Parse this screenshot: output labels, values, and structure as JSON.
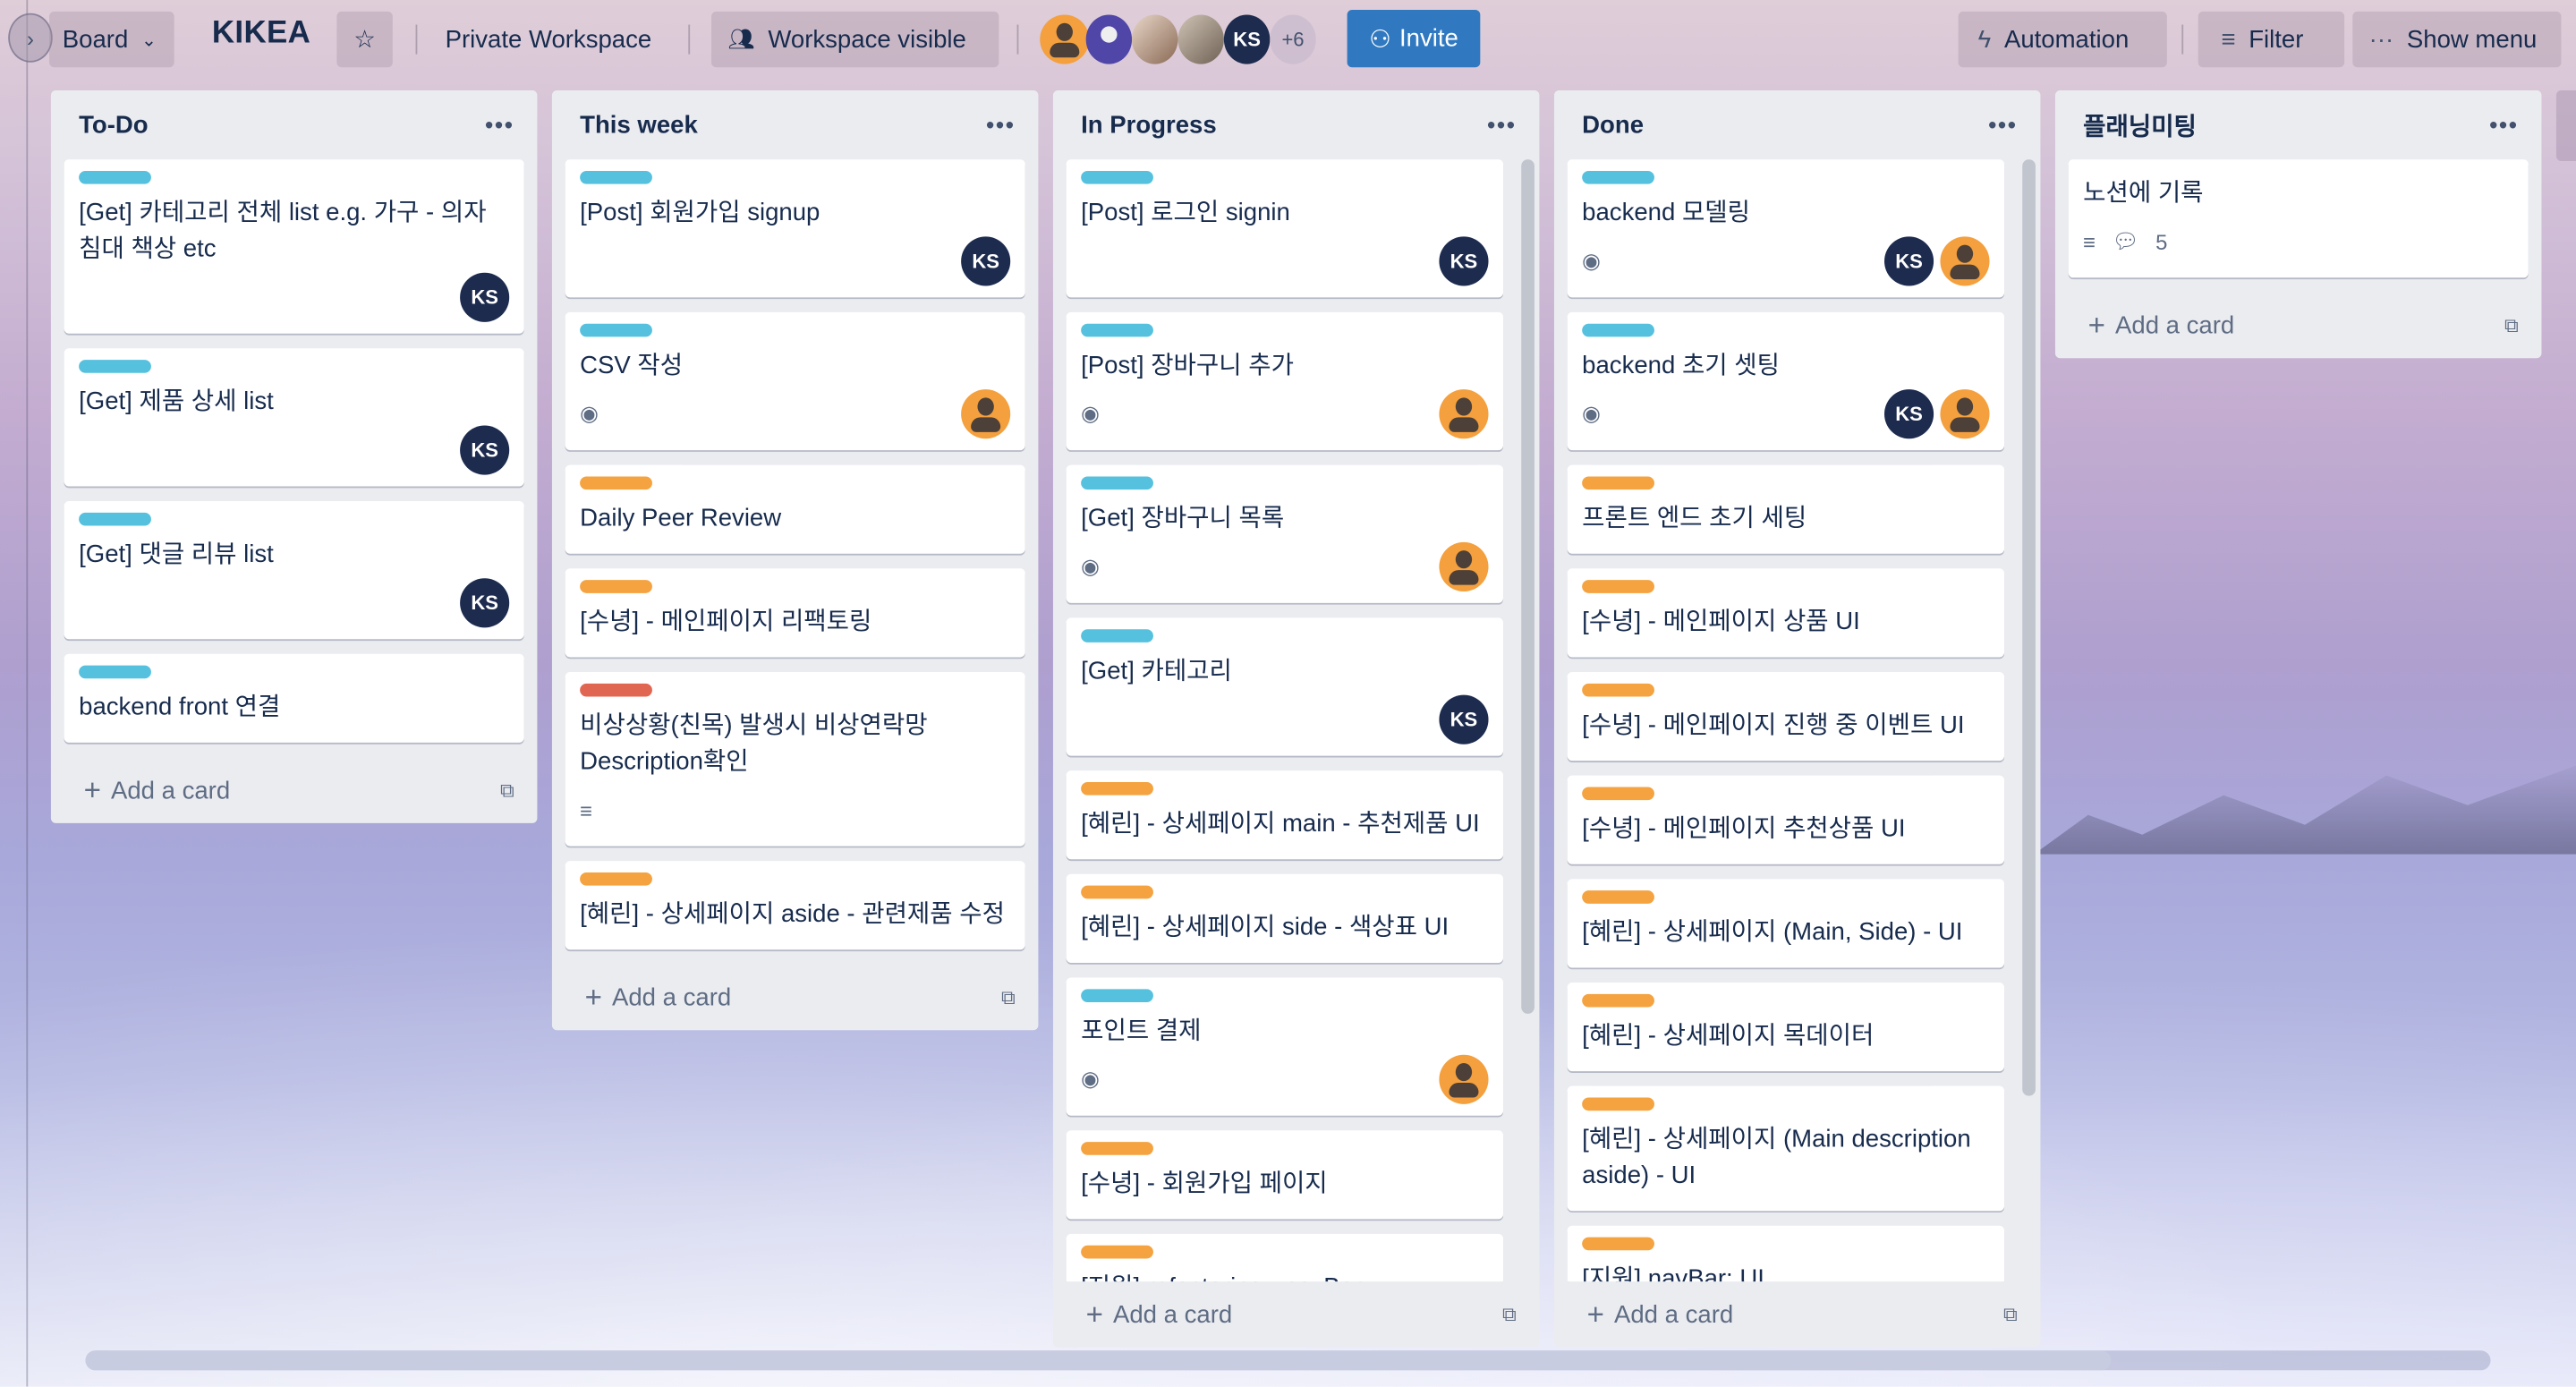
{
  "header": {
    "board_label": "Board",
    "board_title": "KIKEA",
    "workspace": "Private Workspace",
    "visibility": "Workspace visible",
    "members": [
      {
        "type": "default-orange"
      },
      {
        "type": "admin-purple"
      },
      {
        "type": "photo"
      },
      {
        "type": "photo"
      },
      {
        "initials": "KS"
      }
    ],
    "more_members": "+6",
    "invite": "Invite",
    "automation": "Automation",
    "filter": "Filter",
    "show_menu": "Show menu"
  },
  "colors": {
    "label_blue": "#56c1de",
    "label_orange": "#f4a340",
    "label_red": "#e06651",
    "avatar_ks": "#1d2b4f",
    "avatar_orange": "#f4a03e",
    "invite": "#3079c0"
  },
  "add_card": "Add a card",
  "lists": [
    {
      "title": "To-Do",
      "cards": [
        {
          "label": "blue",
          "title": "[Get] 카테고리 전체 list e.g. 가구 - 의자 침대 책상 etc",
          "members": [
            "KS"
          ]
        },
        {
          "label": "blue",
          "title": "[Get] 제품 상세 list",
          "members": [
            "KS"
          ]
        },
        {
          "label": "blue",
          "title": "[Get] 댓글 리뷰 list",
          "members": [
            "KS"
          ]
        },
        {
          "label": "blue",
          "title": "backend front 연결"
        }
      ]
    },
    {
      "title": "This week",
      "cards": [
        {
          "label": "blue",
          "title": "[Post] 회원가입 signup",
          "members": [
            "KS"
          ]
        },
        {
          "label": "blue",
          "title": "CSV 작성",
          "watch": true,
          "members": [
            "orange"
          ]
        },
        {
          "label": "orange",
          "title": "Daily Peer Review"
        },
        {
          "label": "orange",
          "title": "[수녕] - 메인페이지 리팩토링"
        },
        {
          "label": "red",
          "title": "비상상황(친목) 발생시 비상연락망 Description확인",
          "description": true
        },
        {
          "label": "orange",
          "title": "[혜린] - 상세페이지 aside - 관련제품 수정"
        }
      ]
    },
    {
      "title": "In Progress",
      "scroll": true,
      "cards": [
        {
          "label": "blue",
          "title": "[Post] 로그인 signin",
          "members": [
            "KS"
          ]
        },
        {
          "label": "blue",
          "title": "[Post] 장바구니 추가",
          "watch": true,
          "members": [
            "orange"
          ]
        },
        {
          "label": "blue",
          "title": "[Get] 장바구니 목록",
          "watch": true,
          "members": [
            "orange"
          ]
        },
        {
          "label": "blue",
          "title": "[Get] 카테고리",
          "members": [
            "KS"
          ]
        },
        {
          "label": "orange",
          "title": "[혜린] - 상세페이지 main - 추천제품 UI"
        },
        {
          "label": "orange",
          "title": "[혜린] - 상세페이지 side - 색상표 UI"
        },
        {
          "label": "blue",
          "title": "포인트 결제",
          "watch": true,
          "members": [
            "orange"
          ]
        },
        {
          "label": "orange",
          "title": "[수녕] - 회원가입 페이지"
        },
        {
          "label": "orange",
          "title": "[지원] refactoring : navBar"
        }
      ]
    },
    {
      "title": "Done",
      "scroll": true,
      "cards": [
        {
          "label": "blue",
          "title": "backend 모델링",
          "watch": true,
          "members": [
            "KS",
            "orange"
          ]
        },
        {
          "label": "blue",
          "title": "backend 초기 셋팅",
          "watch": true,
          "members": [
            "KS",
            "orange"
          ]
        },
        {
          "label": "orange",
          "title": "프론트 엔드 초기 세팅"
        },
        {
          "label": "orange",
          "title": "[수녕] - 메인페이지 상품 UI"
        },
        {
          "label": "orange",
          "title": "[수녕] - 메인페이지 진행 중 이벤트 UI"
        },
        {
          "label": "orange",
          "title": "[수녕] - 메인페이지 추천상품 UI"
        },
        {
          "label": "orange",
          "title": "[혜린] - 상세페이지 (Main, Side) - UI"
        },
        {
          "label": "orange",
          "title": "[혜린] - 상세페이지 목데이터"
        },
        {
          "label": "orange",
          "title": "[혜린] - 상세페이지 (Main description aside) - UI"
        },
        {
          "label": "orange",
          "title": "[지원] navBar: UI"
        },
        {
          "label": "orange",
          "title": ""
        }
      ]
    },
    {
      "title": "플래닝미팅",
      "cards": [
        {
          "title": "노션에 기록",
          "description": true,
          "comments": "5"
        }
      ]
    }
  ]
}
